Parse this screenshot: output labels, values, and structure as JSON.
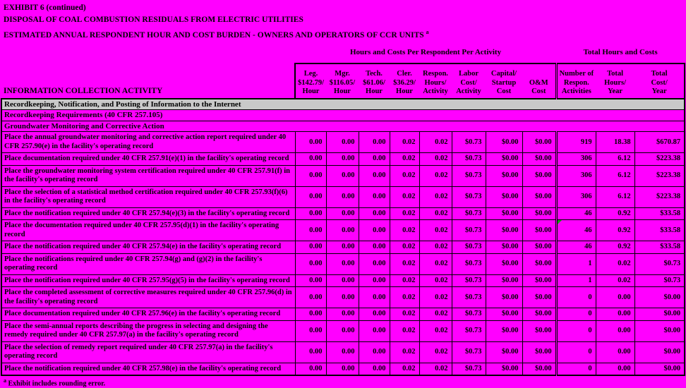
{
  "page": {
    "titles": [
      "EXHIBIT 6 (continued)",
      "DISPOSAL OF COAL COMBUSTION RESIDUALS FROM ELECTRIC UTILITIES",
      "ESTIMATED ANNUAL RESPONDENT HOUR AND COST BURDEN - OWNERS AND OPERATORS OF CCR UNITS"
    ],
    "title3_superscript": "a",
    "footnote": {
      "superscript": "a",
      "text": " Exhibit includes rounding error."
    }
  },
  "colors": {
    "background": "#FF00FF",
    "section_band_gray": "#C9C9C9",
    "flag_green": "#12A112",
    "border": "#000000"
  },
  "table": {
    "group_headers": {
      "per_respondent": "Hours and Costs Per Respondent Per Activity",
      "totals": "Total Hours and Costs"
    },
    "activity_header": "INFORMATION COLLECTION ACTIVITY",
    "column_keys": [
      "leg-rate",
      "mgr-rate",
      "tech-rate",
      "cler-rate",
      "respon-hours",
      "labor-cost",
      "capital-startup-cost",
      "om-cost",
      "num-activities",
      "total-hours",
      "total-cost"
    ],
    "columns": [
      [
        "Leg.",
        "$142.79/",
        "Hour"
      ],
      [
        "Mgr.",
        "$116.05/",
        "Hour"
      ],
      [
        "Tech.",
        "$61.06/",
        "Hour"
      ],
      [
        "Cler.",
        "$36.29/",
        "Hour"
      ],
      [
        "Respon.",
        "Hours/",
        "Activity"
      ],
      [
        "Labor",
        "Cost/",
        "Activity"
      ],
      [
        "Capital/",
        "Startup",
        "Cost"
      ],
      [
        "O&M",
        "Cost"
      ],
      [
        "Number of",
        "Respon.",
        "Activities"
      ],
      [
        "Total",
        "Hours/",
        "Year"
      ],
      [
        "Total",
        "Cost/",
        "Year"
      ]
    ],
    "body": [
      {
        "type": "section",
        "style": "gray",
        "label": "Recordkeeping, Notification, and Posting of Information to the Internet"
      },
      {
        "type": "section",
        "label": "Recordkeeping Requirements (40 CFR 257.105)"
      },
      {
        "type": "section",
        "label": "Groundwater Monitoring and Corrective Action"
      },
      {
        "type": "row",
        "activity": "Place the annual groundwater monitoring and corrective action report required under 40 CFR 257.90(e) in the facility's operating record",
        "cells": [
          "0.00",
          "0.00",
          "0.00",
          "0.02",
          "0.02",
          "$0.73",
          "$0.00",
          "$0.00",
          "919",
          "18.38",
          "$670.87"
        ]
      },
      {
        "type": "row",
        "activity": "Place documentation required under 40 CFR 257.91(e)(1) in the facility's operating record",
        "cells": [
          "0.00",
          "0.00",
          "0.00",
          "0.02",
          "0.02",
          "$0.73",
          "$0.00",
          "$0.00",
          "306",
          "6.12",
          "$223.38"
        ]
      },
      {
        "type": "row",
        "activity": "Place the groundwater monitoring system certification required under 40 CFR 257.91(f) in the facility's operating record",
        "cells": [
          "0.00",
          "0.00",
          "0.00",
          "0.02",
          "0.02",
          "$0.73",
          "$0.00",
          "$0.00",
          "306",
          "6.12",
          "$223.38"
        ]
      },
      {
        "type": "row",
        "activity": "Place the selection of a statistical method certification required under 40 CFR 257.93(f)(6) in the facility's operating record",
        "cells": [
          "0.00",
          "0.00",
          "0.00",
          "0.02",
          "0.02",
          "$0.73",
          "$0.00",
          "$0.00",
          "306",
          "6.12",
          "$223.38"
        ]
      },
      {
        "type": "row",
        "activity": "Place the notification required under 40 CFR 257.94(e)(3) in the facility's operating record",
        "cells": [
          "0.00",
          "0.00",
          "0.00",
          "0.02",
          "0.02",
          "$0.73",
          "$0.00",
          "$0.00",
          "46",
          "0.92",
          "$33.58"
        ]
      },
      {
        "type": "row",
        "flag": true,
        "activity": "Place the documentation required under 40 CFR 257.95(d)(1) in the facility's operating record",
        "cells": [
          "0.00",
          "0.00",
          "0.00",
          "0.02",
          "0.02",
          "$0.73",
          "$0.00",
          "$0.00",
          "46",
          "0.92",
          "$33.58"
        ]
      },
      {
        "type": "row",
        "activity": "Place the notification required under 40 CFR 257.94(e) in the facility's operating record",
        "cells": [
          "0.00",
          "0.00",
          "0.00",
          "0.02",
          "0.02",
          "$0.73",
          "$0.00",
          "$0.00",
          "46",
          "0.92",
          "$33.58"
        ]
      },
      {
        "type": "row",
        "activity": "Place the notifications required under 40 CFR 257.94(g) and (g)(2) in the facility's operating record",
        "cells": [
          "0.00",
          "0.00",
          "0.00",
          "0.02",
          "0.02",
          "$0.73",
          "$0.00",
          "$0.00",
          "1",
          "0.02",
          "$0.73"
        ]
      },
      {
        "type": "row",
        "activity": "Place the notification required under 40 CFR 257.95(g)(5) in the facility's operating record",
        "cells": [
          "0.00",
          "0.00",
          "0.00",
          "0.02",
          "0.02",
          "$0.73",
          "$0.00",
          "$0.00",
          "1",
          "0.02",
          "$0.73"
        ]
      },
      {
        "type": "row",
        "activity": "Place the completed assessment of corrective measures required under 40 CFR 257.96(d) in the facility's operating record",
        "cells": [
          "0.00",
          "0.00",
          "0.00",
          "0.02",
          "0.02",
          "$0.73",
          "$0.00",
          "$0.00",
          "0",
          "0.00",
          "$0.00"
        ]
      },
      {
        "type": "row",
        "activity": "Place documentation required under 40 CFR 257.96(e) in the facility's operating record",
        "cells": [
          "0.00",
          "0.00",
          "0.00",
          "0.02",
          "0.02",
          "$0.73",
          "$0.00",
          "$0.00",
          "0",
          "0.00",
          "$0.00"
        ]
      },
      {
        "type": "row",
        "activity": "Place the semi-annual reports describing the progress in selecting and designing the remedy required under 40 CFR 257.97(a) in the facility's operating record",
        "cells": [
          "0.00",
          "0.00",
          "0.00",
          "0.02",
          "0.02",
          "$0.73",
          "$0.00",
          "$0.00",
          "0",
          "0.00",
          "$0.00"
        ]
      },
      {
        "type": "row",
        "activity": "Place the selection of remedy report required under 40 CFR 257.97(a) in the facility's operating record",
        "cells": [
          "0.00",
          "0.00",
          "0.00",
          "0.02",
          "0.02",
          "$0.73",
          "$0.00",
          "$0.00",
          "0",
          "0.00",
          "$0.00"
        ]
      },
      {
        "type": "row",
        "activity": "Place the notification required under 40 CFR 257.98(e) in the facility's operating record",
        "cells": [
          "0.00",
          "0.00",
          "0.00",
          "0.02",
          "0.02",
          "$0.73",
          "$0.00",
          "$0.00",
          "0",
          "0.00",
          "$0.00"
        ]
      }
    ]
  }
}
